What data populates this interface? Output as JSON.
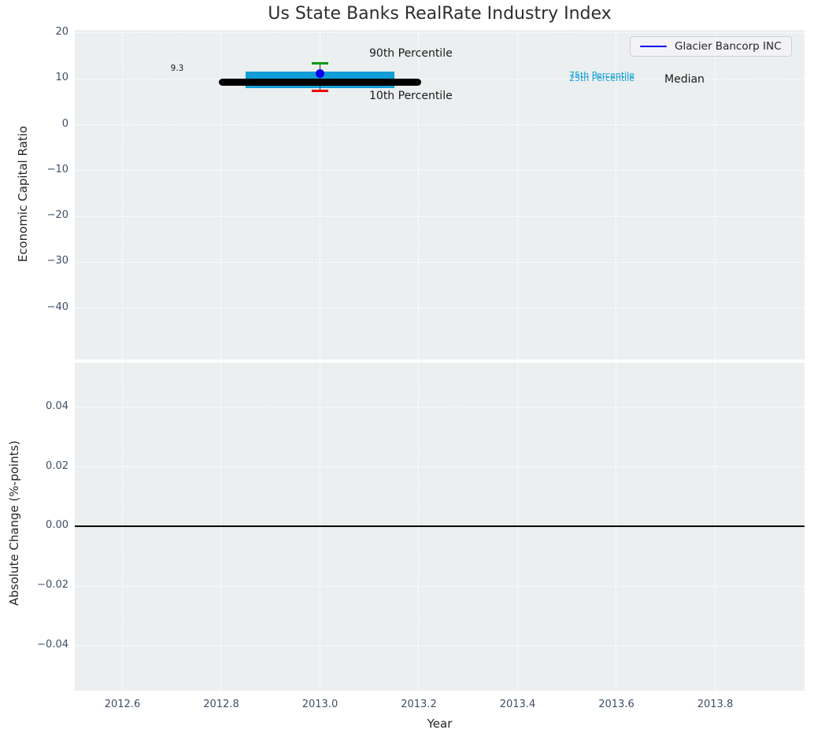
{
  "title": "Us State Banks RealRate Industry Index",
  "axis_labels": {
    "top_y": "Economic Capital Ratio",
    "bottom_y": "Absolute Change (%-points)",
    "x": "Year"
  },
  "legend": {
    "label": "Glacier Bancorp INC",
    "position": "upper right"
  },
  "annotations": {
    "median_value": "9.3",
    "p90": "90th Percentile",
    "p10": "10th Percentile",
    "p75": "75th Percentile",
    "p25": "25th Percentile",
    "median": "Median"
  },
  "colors": {
    "plot_bg": "#ebeff0",
    "grid": "rgba(255,255,255,0.95)",
    "tick_label": "#3e4f66",
    "text": "#262626",
    "box": "#119dd8",
    "median_line": "#000000",
    "whisker": "#333333",
    "p90_tick": "#009900",
    "p10_tick": "#ee0000",
    "company_dot": "#0000ee",
    "zero_line": "#000000"
  },
  "chart_data": [
    {
      "type": "boxplot",
      "title": "Us State Banks RealRate Industry Index",
      "xlabel": "Year",
      "ylabel": "Economic Capital Ratio",
      "grid": true,
      "legend_entries": [
        "Glacier Bancorp INC"
      ],
      "legend_position": "upper right",
      "xlim": [
        2012.5036,
        2013.9809
      ],
      "ylim": [
        -51.2,
        20.67
      ],
      "xticks": [
        2012.6,
        2012.8,
        2013.0,
        2013.2,
        2013.4,
        2013.6,
        2013.8
      ],
      "xtick_labels": [
        "2012.6",
        "2012.8",
        "2013.0",
        "2013.2",
        "2013.4",
        "2013.6",
        "2013.8"
      ],
      "yticks": [
        20,
        10,
        0,
        -10,
        -20,
        -30,
        -40
      ],
      "ytick_labels": [
        "20",
        "10",
        "0",
        "−10",
        "−20",
        "−30",
        "−40"
      ],
      "series": {
        "year": 2013.0,
        "median": 9.3,
        "p25": 8.0,
        "p75": 11.6,
        "p10": 7.4,
        "p90": 13.4,
        "company": "Glacier Bancorp INC",
        "company_value": 11.2,
        "median_span": [
          2012.795,
          2013.205
        ],
        "box_span": [
          2012.85,
          2013.15
        ],
        "cap_span": [
          2012.983,
          2013.017
        ]
      }
    },
    {
      "type": "line",
      "xlabel": "Year",
      "ylabel": "Absolute Change (%-points)",
      "grid": true,
      "xlim": [
        2012.5036,
        2013.9809
      ],
      "ylim": [
        -0.0551,
        0.055
      ],
      "xticks": [
        2012.6,
        2012.8,
        2013.0,
        2013.2,
        2013.4,
        2013.6,
        2013.8
      ],
      "xtick_labels": [
        "2012.6",
        "2012.8",
        "2013.0",
        "2013.2",
        "2013.4",
        "2013.6",
        "2013.8"
      ],
      "yticks": [
        0.04,
        0.02,
        0.0,
        -0.02,
        -0.04
      ],
      "ytick_labels": [
        "0.04",
        "0.02",
        "0.00",
        "−0.02",
        "−0.04"
      ],
      "zero_line": 0.0
    }
  ]
}
